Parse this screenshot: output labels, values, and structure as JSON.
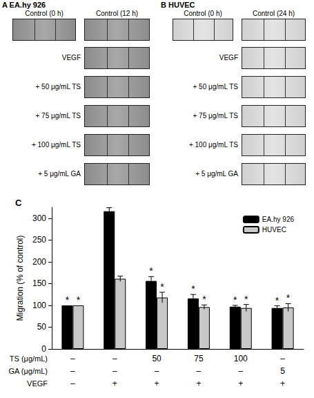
{
  "panels": [
    {
      "letter": "A",
      "title": "EA.hy 926",
      "control_headers": [
        "Control (0 h)",
        "Control (12 h)"
      ],
      "row_labels": [
        "VEGF",
        "+ 50 μg/mL TS",
        "+ 75 μg/mL TS",
        "+ 100 μg/mL TS",
        "+ 5 μg/mL GA"
      ]
    },
    {
      "letter": "B",
      "title": "HUVEC",
      "control_headers": [
        "Control (0 h)",
        "Control (24 h)"
      ],
      "row_labels": [
        "VEGF",
        "+ 50 μg/mL TS",
        "+ 75 μg/mL TS",
        "+ 100 μg/mL TS",
        "+ 5 μg/mL GA"
      ]
    }
  ],
  "chart_data": {
    "panel_label": "C",
    "type": "bar",
    "ylabel": "Migration (% of control)",
    "categories": [
      null,
      null,
      null,
      null,
      null,
      null
    ],
    "series": [
      {
        "name": "EA.hy 926",
        "color": "#000000",
        "values": [
          100,
          316,
          156,
          116,
          97,
          94
        ],
        "errors": [
          0,
          8,
          10,
          9,
          3,
          5
        ],
        "significance": [
          "*",
          null,
          "*",
          "*",
          "*",
          "*"
        ]
      },
      {
        "name": "HUVEC",
        "color": "#c8c8c8",
        "values": [
          100,
          161,
          118,
          96,
          94,
          95
        ],
        "errors": [
          0,
          6,
          12,
          5,
          8,
          9
        ],
        "significance": [
          "*",
          null,
          "*",
          "*",
          "*",
          "*"
        ]
      }
    ],
    "treatment_table": [
      {
        "label": "TS (μg/mL)",
        "values": [
          "–",
          "–",
          "50",
          "75",
          "100",
          "–"
        ]
      },
      {
        "label": "GA (μg/mL)",
        "values": [
          "–",
          "–",
          "–",
          "–",
          "–",
          "5"
        ]
      },
      {
        "label": "VEGF",
        "values": [
          "–",
          "+",
          "+",
          "+",
          "+",
          "+"
        ]
      }
    ],
    "ylim": [
      0,
      325
    ],
    "yticks": [
      0,
      50,
      100,
      150,
      200,
      250,
      300
    ],
    "grid": false,
    "legend": "top-right"
  }
}
